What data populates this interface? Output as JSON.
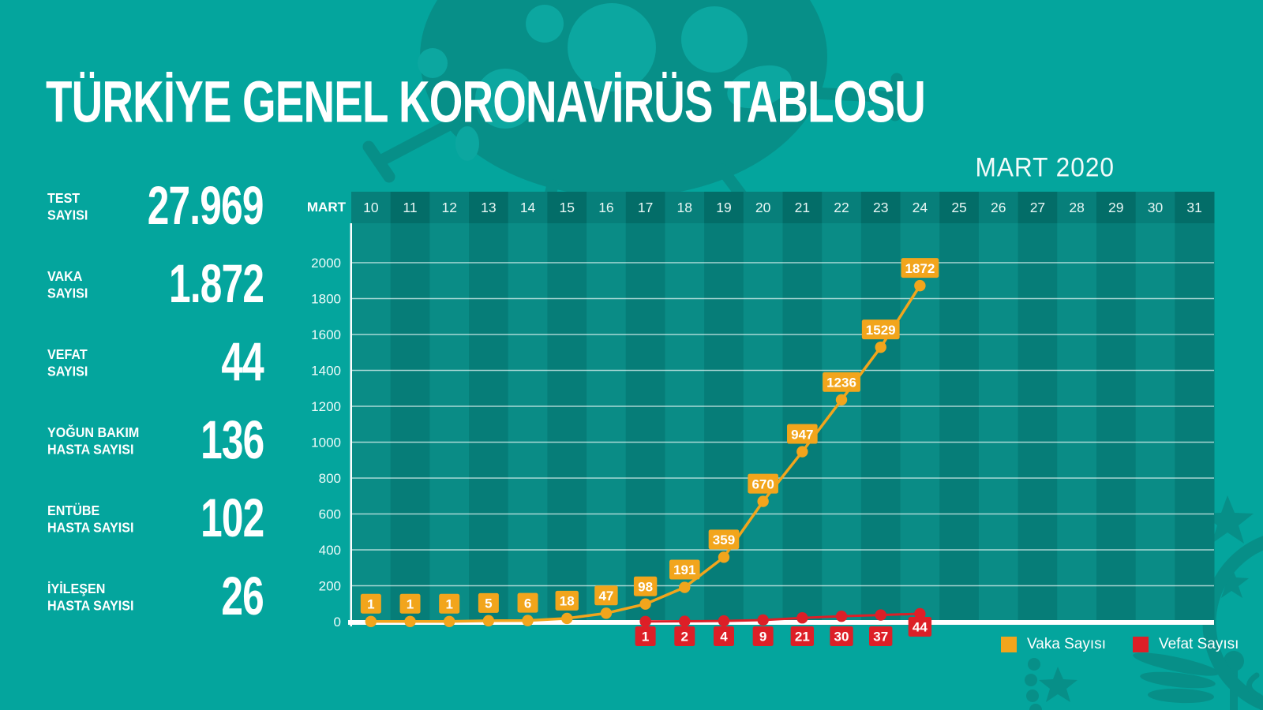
{
  "page": {
    "title": "TÜRKİYE GENEL KORONAVİRÜS TABLOSU",
    "month_label": "MART 2020"
  },
  "stats": [
    {
      "label_line1": "TEST",
      "label_line2": "SAYISI",
      "value": "27.969"
    },
    {
      "label_line1": "VAKA",
      "label_line2": "SAYISI",
      "value": "1.872"
    },
    {
      "label_line1": "VEFAT",
      "label_line2": "SAYISI",
      "value": "44"
    },
    {
      "label_line1": "YOĞUN BAKIM",
      "label_line2": "HASTA SAYISI",
      "value": "136"
    },
    {
      "label_line1": "ENTÜBE",
      "label_line2": "HASTA SAYISI",
      "value": "102"
    },
    {
      "label_line1": "İYİLEŞEN",
      "label_line2": "HASTA SAYISI",
      "value": "26"
    }
  ],
  "chart_data": {
    "type": "line",
    "title": "MART 2020",
    "x_axis_label": "MART",
    "dates": [
      10,
      11,
      12,
      13,
      14,
      15,
      16,
      17,
      18,
      19,
      20,
      21,
      22,
      23,
      24,
      25,
      26,
      27,
      28,
      29,
      30,
      31
    ],
    "y_ticks": [
      0,
      200,
      400,
      600,
      800,
      1000,
      1200,
      1400,
      1600,
      1800,
      2000
    ],
    "ylim": [
      0,
      2230
    ],
    "grid": true,
    "legend_position": "bottom-right",
    "series": [
      {
        "name": "Vaka Sayısı",
        "color": "#F2A51C",
        "labels_position": "above",
        "dates": [
          10,
          11,
          12,
          13,
          14,
          15,
          16,
          17,
          18,
          19,
          20,
          21,
          22,
          23,
          24
        ],
        "values": [
          1,
          1,
          1,
          5,
          6,
          18,
          47,
          98,
          191,
          359,
          670,
          947,
          1236,
          1529,
          1872
        ]
      },
      {
        "name": "Vefat Sayısı",
        "color": "#DD1F27",
        "labels_position": "below",
        "dates": [
          17,
          18,
          19,
          20,
          21,
          22,
          23,
          24
        ],
        "values": [
          1,
          2,
          4,
          9,
          21,
          30,
          37,
          44
        ]
      }
    ]
  },
  "colors": {
    "background": "#04A59D",
    "watermark": "#078F88",
    "watermark_dots": "#0CA7A0",
    "header_col_light": "#077F7A",
    "header_col_dark": "#036D68",
    "plot_col_light": "#0A8C86",
    "plot_col_dark": "#067D78",
    "gridline": "rgba(235,250,248,0.7)",
    "axis": "#FFFFFF",
    "tick_text": "#EFFBFA"
  }
}
